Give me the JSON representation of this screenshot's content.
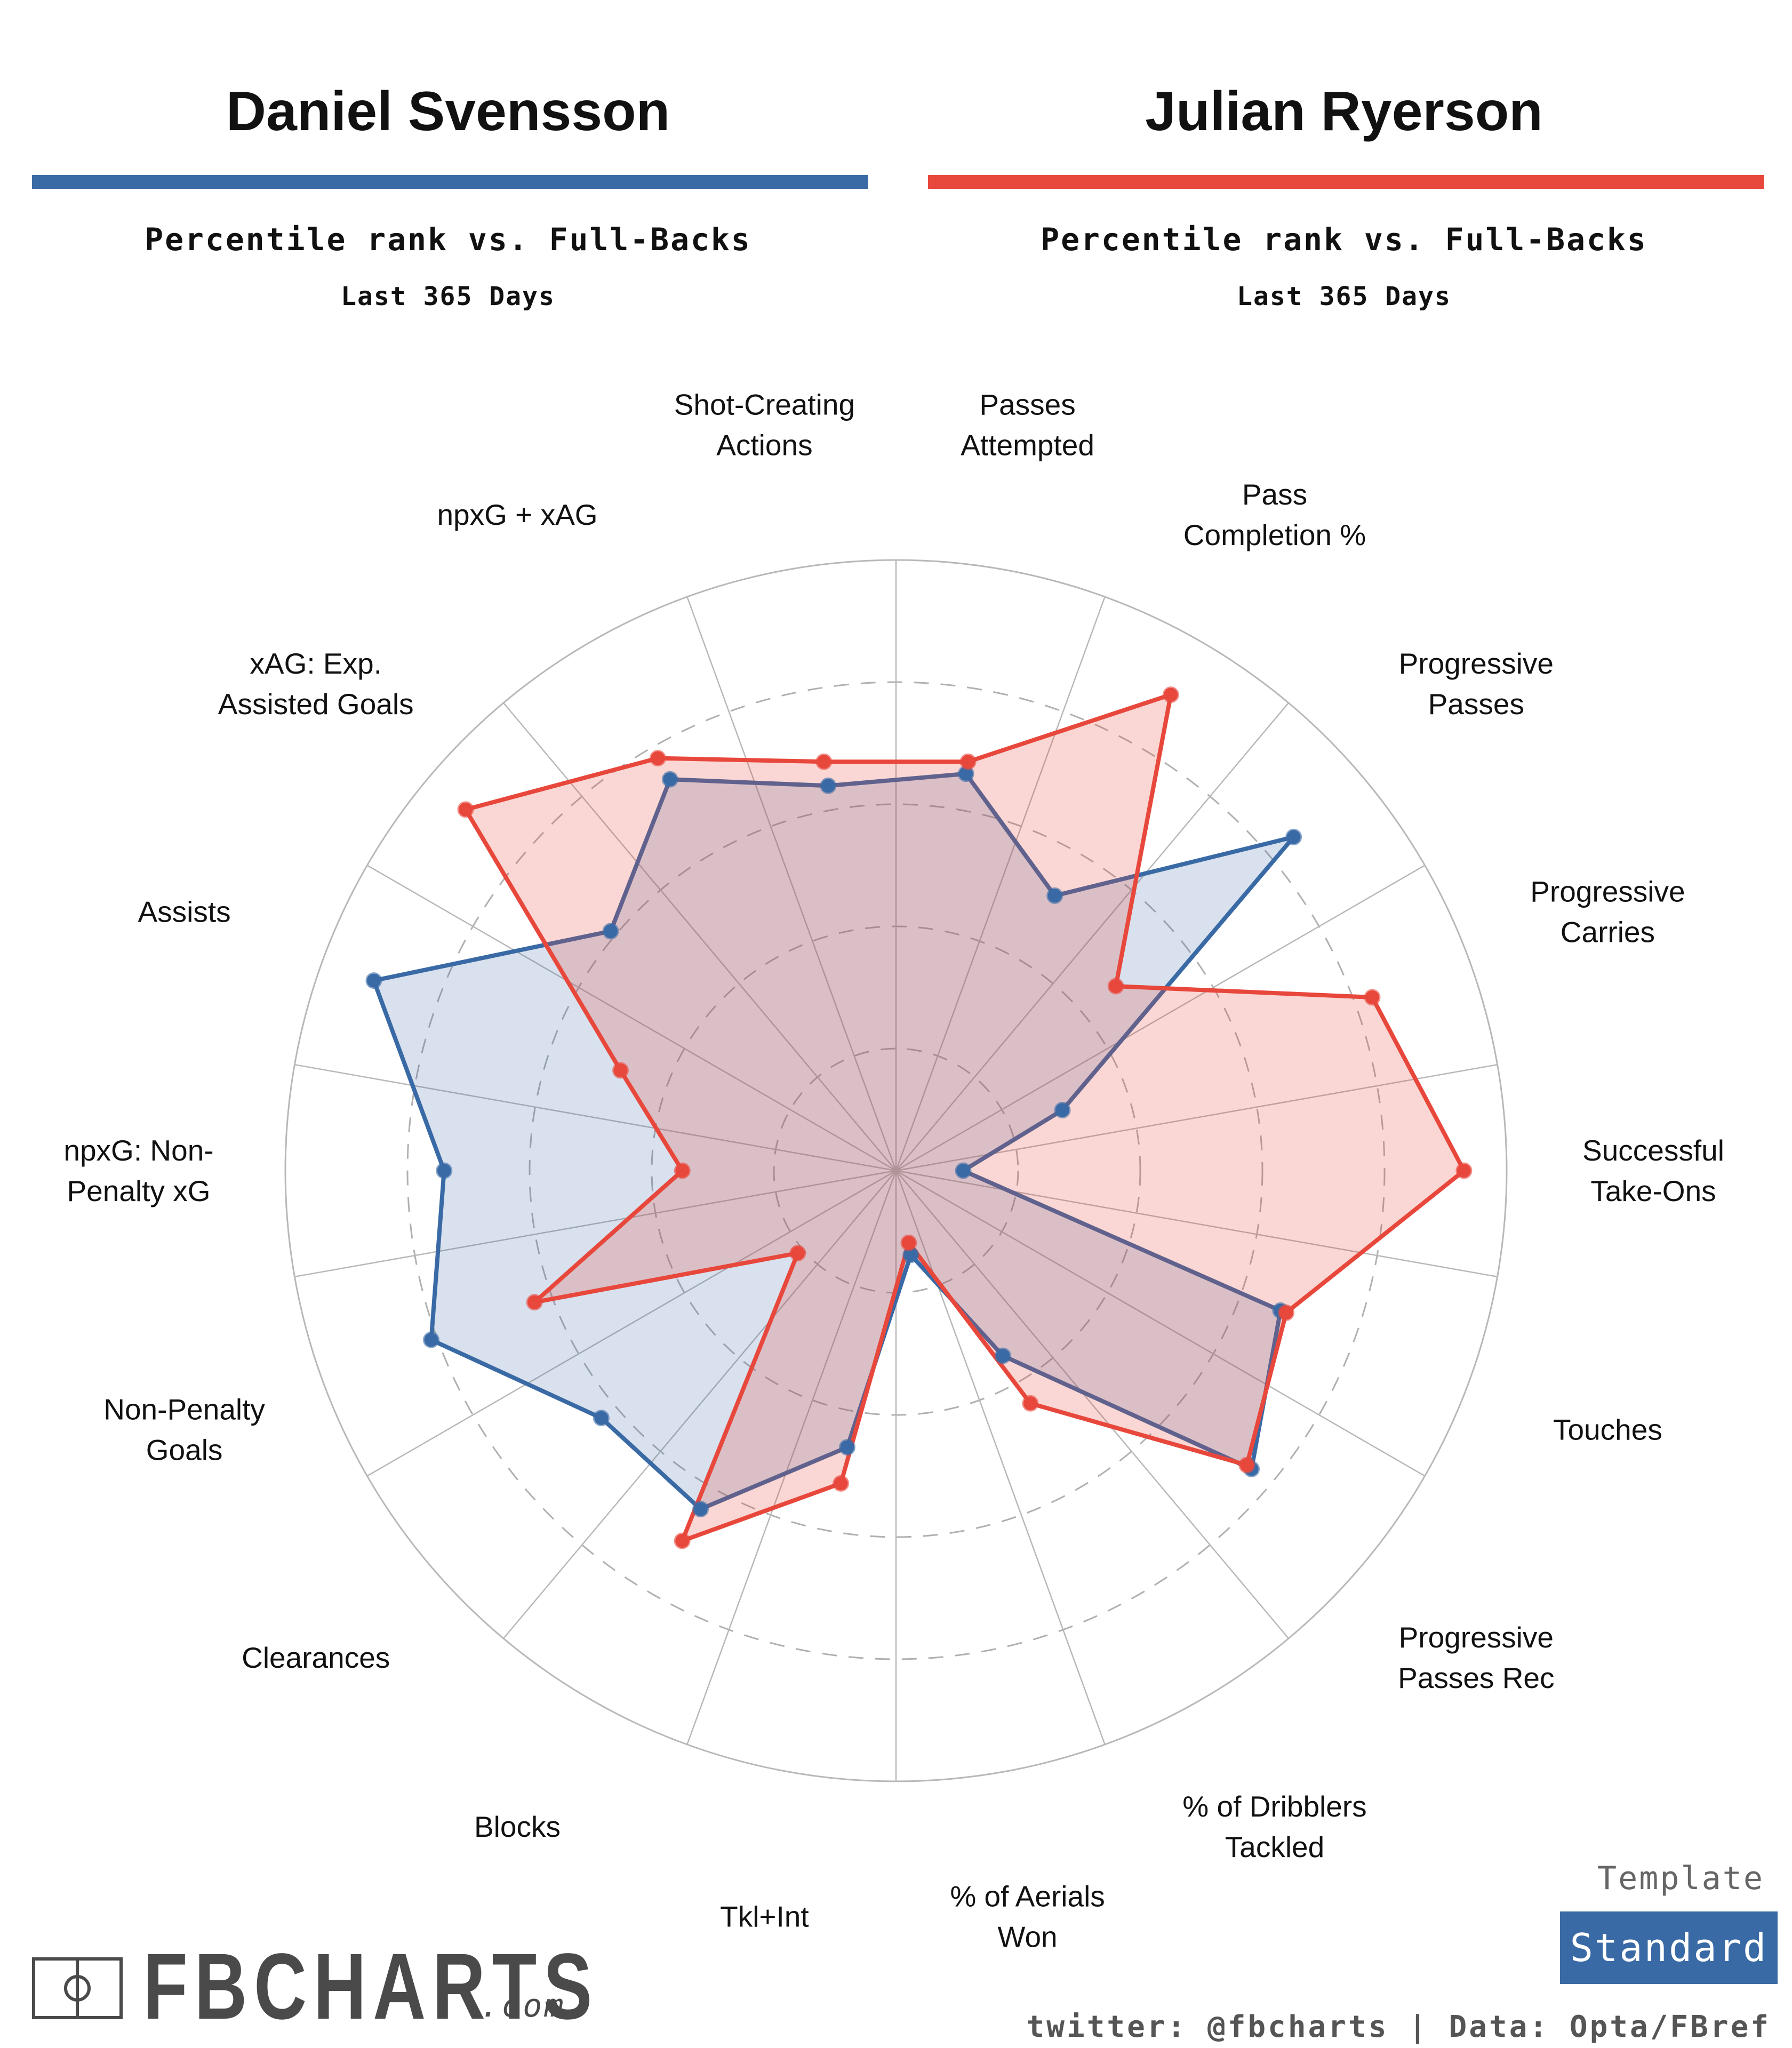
{
  "players": [
    {
      "name": "Daniel Svensson",
      "subtitle": "Percentile rank vs. Full-Backs",
      "period": "Last 365 Days",
      "color": "#3a6aa5"
    },
    {
      "name": "Julian Ryerson",
      "subtitle": "Percentile rank vs. Full-Backs",
      "period": "Last 365 Days",
      "color": "#e8473c"
    }
  ],
  "chart_data": {
    "type": "radar",
    "title": "",
    "metrics": [
      "Passes Attempted",
      "Pass Completion %",
      "Progressive Passes",
      "Progressive Carries",
      "Successful Take-Ons",
      "Touches",
      "Progressive Passes Rec",
      "% of Dribblers Tackled",
      "% of Aerials Won",
      "Tkl+Int",
      "Blocks",
      "Clearances",
      "Non-Penalty Goals",
      "npxG: Non-Penalty xG",
      "Assists",
      "xAG: Exp. Assisted Goals",
      "npxG + xAG",
      "Shot-Creating Actions"
    ],
    "axis_labels": [
      [
        "Passes",
        "Attempted"
      ],
      [
        "Pass",
        "Completion %"
      ],
      [
        "Progressive",
        "Passes"
      ],
      [
        "Progressive",
        "Carries"
      ],
      [
        "Successful",
        "Take-Ons"
      ],
      [
        "Touches"
      ],
      [
        "Progressive",
        "Passes Rec"
      ],
      [
        "% of Dribblers",
        "Tackled"
      ],
      [
        "% of Aerials",
        "Won"
      ],
      [
        "Tkl+Int"
      ],
      [
        "Blocks"
      ],
      [
        "Clearances"
      ],
      [
        "Non-Penalty",
        "Goals"
      ],
      [
        "npxG: Non-",
        "Penalty xG"
      ],
      [
        "Assists"
      ],
      [
        "xAG: Exp.",
        "Assisted Goals"
      ],
      [
        "npxG + xAG"
      ],
      [
        "Shot-Creating",
        "Actions"
      ]
    ],
    "series": [
      {
        "name": "Daniel Svensson",
        "color": "#3a6aa5",
        "values": [
          66,
          52,
          85,
          29,
          11,
          67,
          76,
          35,
          14,
          46,
          64,
          63,
          81,
          74,
          91,
          61,
          74,
          64
        ]
      },
      {
        "name": "Julian Ryerson",
        "color": "#e8473c",
        "values": [
          68,
          90,
          47,
          83,
          93,
          68,
          75,
          44,
          12,
          52,
          70,
          21,
          63,
          35,
          48,
          92,
          78,
          68
        ]
      }
    ],
    "range": [
      0,
      100
    ],
    "rings": [
      20,
      40,
      60,
      80
    ]
  },
  "template": {
    "label": "Template",
    "value": "Standard"
  },
  "branding": {
    "logo": "FBCHARTS",
    "suffix": ".com",
    "credit": "twitter: @fbcharts | Data: Opta/FBref"
  }
}
